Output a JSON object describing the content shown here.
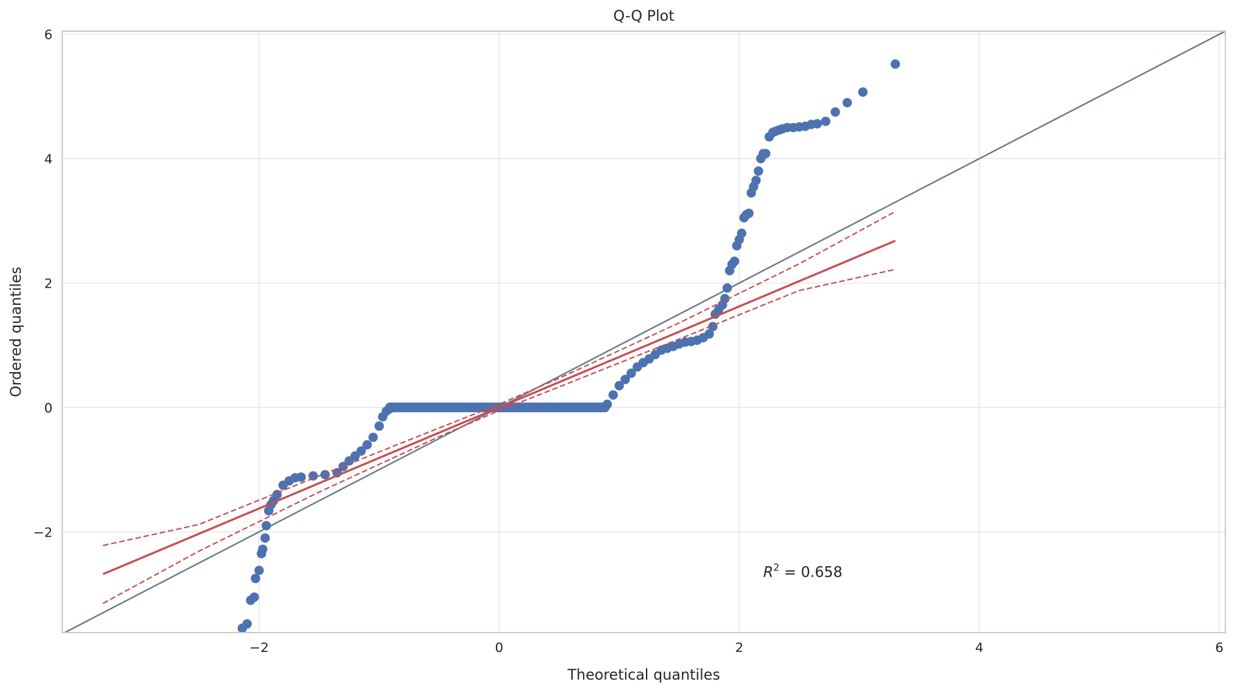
{
  "chart_data": {
    "type": "scatter",
    "title": "Q-Q Plot",
    "xlabel": "Theoretical quantiles",
    "ylabel": "Ordered quantiles",
    "xlim": [
      -3.64,
      6.05
    ],
    "ylim": [
      -3.62,
      6.05
    ],
    "xticks": [
      -2,
      0,
      2,
      4,
      6
    ],
    "yticks": [
      -2,
      0,
      2,
      4,
      6
    ],
    "xtick_labels": [
      "−2",
      "0",
      "2",
      "4",
      "6"
    ],
    "ytick_labels": [
      "−2",
      "0",
      "2",
      "4",
      "6"
    ],
    "grid": true,
    "annotation": {
      "text_prefix": "R",
      "superscript": "2",
      "text_suffix": " = 0.658",
      "x": 2.2,
      "y": -2.65
    },
    "series": [
      {
        "role": "sample-quantiles",
        "kind": "points",
        "color": "#4c72b0",
        "x": [
          -2.14,
          -2.1,
          -2.07,
          -2.04,
          -2.03,
          -2.0,
          -1.98,
          -1.97,
          -1.95,
          -1.94,
          -1.92,
          -1.9,
          -1.88,
          -1.85,
          -1.8,
          -1.75,
          -1.7,
          -1.65,
          -1.55,
          -1.45,
          -1.35,
          -1.3,
          -1.25,
          -1.2,
          -1.15,
          -1.1,
          -1.05,
          -1.0,
          -0.97,
          -0.94,
          -0.91,
          -0.9,
          -0.85,
          -0.8,
          -0.7,
          -0.6,
          -0.5,
          -0.4,
          -0.3,
          -0.2,
          -0.1,
          0.0,
          0.1,
          0.2,
          0.3,
          0.4,
          0.5,
          0.6,
          0.7,
          0.8,
          0.88,
          0.9,
          0.95,
          1.0,
          1.05,
          1.1,
          1.15,
          1.2,
          1.25,
          1.3,
          1.35,
          1.4,
          1.45,
          1.5,
          1.55,
          1.6,
          1.65,
          1.7,
          1.75,
          1.78,
          1.8,
          1.83,
          1.86,
          1.88,
          1.9,
          1.92,
          1.94,
          1.96,
          1.98,
          2.0,
          2.02,
          2.04,
          2.06,
          2.08,
          2.1,
          2.12,
          2.14,
          2.16,
          2.18,
          2.2,
          2.22,
          2.25,
          2.28,
          2.3,
          2.33,
          2.36,
          2.4,
          2.45,
          2.5,
          2.55,
          2.6,
          2.65,
          2.72,
          2.8,
          2.9,
          3.03,
          3.3
        ],
        "y": [
          -3.55,
          -3.48,
          -3.1,
          -3.05,
          -2.75,
          -2.62,
          -2.35,
          -2.28,
          -2.1,
          -1.9,
          -1.66,
          -1.56,
          -1.5,
          -1.4,
          -1.25,
          -1.18,
          -1.13,
          -1.12,
          -1.1,
          -1.08,
          -1.05,
          -0.95,
          -0.86,
          -0.78,
          -0.7,
          -0.6,
          -0.48,
          -0.3,
          -0.15,
          -0.06,
          -0.02,
          0.0,
          0.0,
          0.0,
          0.0,
          0.0,
          0.0,
          0.0,
          0.0,
          0.0,
          0.0,
          0.0,
          0.0,
          0.0,
          0.0,
          0.0,
          0.0,
          0.0,
          0.0,
          0.0,
          0.0,
          0.05,
          0.2,
          0.35,
          0.45,
          0.55,
          0.65,
          0.72,
          0.78,
          0.85,
          0.92,
          0.95,
          0.98,
          1.02,
          1.05,
          1.06,
          1.08,
          1.12,
          1.18,
          1.3,
          1.5,
          1.58,
          1.65,
          1.75,
          1.92,
          2.2,
          2.3,
          2.35,
          2.6,
          2.7,
          2.8,
          3.05,
          3.1,
          3.12,
          3.45,
          3.55,
          3.65,
          3.8,
          4.0,
          4.08,
          4.08,
          4.35,
          4.42,
          4.44,
          4.46,
          4.48,
          4.5,
          4.5,
          4.51,
          4.52,
          4.55,
          4.56,
          4.6,
          4.75,
          4.9,
          5.07,
          5.52
        ]
      },
      {
        "role": "fit-line",
        "kind": "line",
        "color": "#c44e52",
        "x": [
          -3.3,
          3.3
        ],
        "y": [
          -2.68,
          2.68
        ]
      },
      {
        "role": "ci-upper",
        "kind": "dashed",
        "color": "#c44e52",
        "x": [
          -3.3,
          -2.5,
          -1.5,
          -0.5,
          0.0,
          0.5,
          1.5,
          2.5,
          3.3
        ],
        "y": [
          -2.22,
          -1.88,
          -1.1,
          -0.33,
          0.05,
          0.47,
          1.36,
          2.31,
          3.15
        ]
      },
      {
        "role": "ci-lower",
        "kind": "dashed",
        "color": "#c44e52",
        "x": [
          -3.3,
          -2.5,
          -1.5,
          -0.5,
          0.0,
          0.5,
          1.5,
          2.5,
          3.3
        ],
        "y": [
          -3.15,
          -2.31,
          -1.36,
          -0.47,
          -0.05,
          0.33,
          1.1,
          1.88,
          2.22
        ]
      },
      {
        "role": "reference-line",
        "kind": "line",
        "color": "#6b7b8c",
        "x": [
          -3.64,
          6.05
        ],
        "y": [
          -3.64,
          6.05
        ]
      }
    ]
  }
}
